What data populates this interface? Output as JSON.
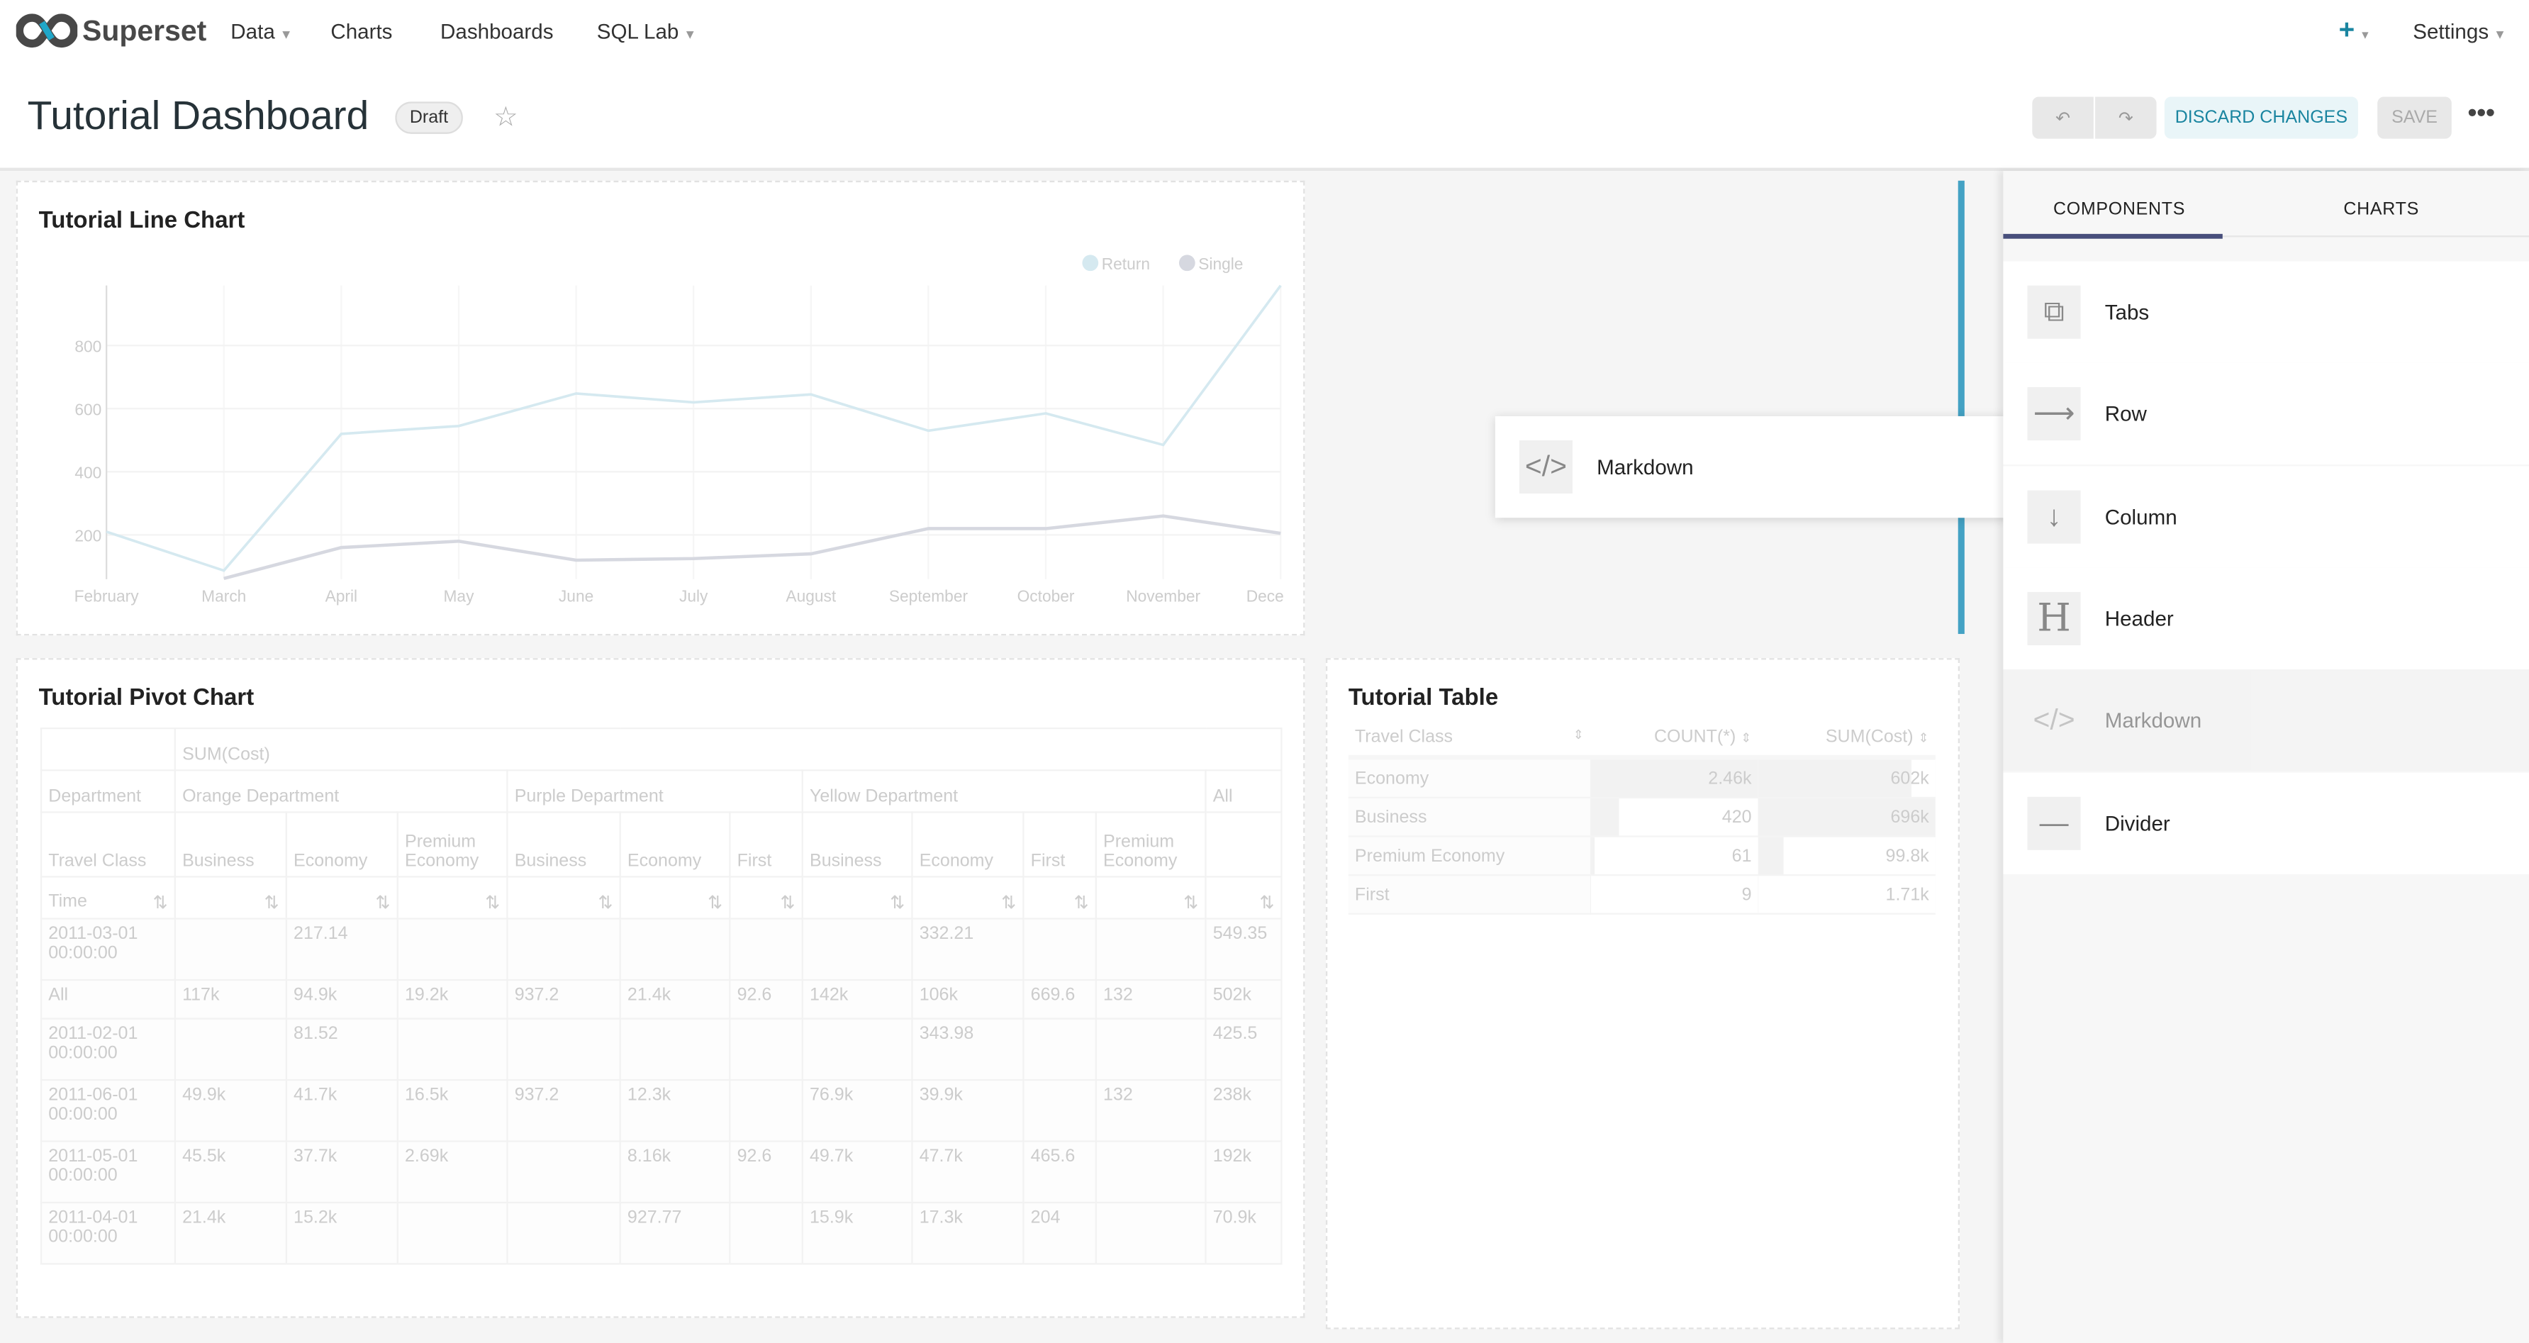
{
  "nav": {
    "brand": "Superset",
    "items": [
      {
        "label": "Data",
        "dropdown": true
      },
      {
        "label": "Charts"
      },
      {
        "label": "Dashboards"
      },
      {
        "label": "SQL Lab",
        "dropdown": true
      }
    ],
    "plus_icon": "plus-icon",
    "settings": "Settings"
  },
  "header": {
    "title": "Tutorial Dashboard",
    "status": "Draft",
    "undo_icon": "undo-icon",
    "redo_icon": "redo-icon",
    "discard": "DISCARD CHANGES",
    "save": "SAVE",
    "more_icon": "ellipsis-icon",
    "accent": "#1a85a0"
  },
  "line_chart": {
    "title": "Tutorial Line Chart",
    "chart_data": {
      "type": "line",
      "x": [
        "February",
        "March",
        "April",
        "May",
        "June",
        "July",
        "August",
        "September",
        "October",
        "November",
        "Dece"
      ],
      "yticks": [
        200,
        400,
        600,
        800
      ],
      "ylim": [
        60,
        990
      ],
      "legend_position": "top-right",
      "series": [
        {
          "name": "Return",
          "color": "#d5e9f0",
          "values": [
            210,
            87,
            520,
            545,
            648,
            620,
            645,
            530,
            585,
            485,
            990
          ]
        },
        {
          "name": "Single",
          "color": "#d6d8e0",
          "values": [
            null,
            62,
            160,
            180,
            120,
            125,
            140,
            220,
            220,
            260,
            205
          ]
        }
      ]
    }
  },
  "drag_preview": {
    "label": "Markdown",
    "icon": "code-icon"
  },
  "pivot": {
    "title": "Tutorial Pivot Chart",
    "metric": "SUM(Cost)",
    "dept_label": "Department",
    "departments": [
      {
        "name": "Orange Department",
        "span": 3
      },
      {
        "name": "Purple Department",
        "span": 3
      },
      {
        "name": "Yellow Department",
        "span": 4
      },
      {
        "name": "All",
        "span": 1
      }
    ],
    "class_label": "Travel Class",
    "classes": [
      "Business",
      "Economy",
      "Premium Economy",
      "Business",
      "Economy",
      "First",
      "Business",
      "Economy",
      "First",
      "Premium Economy",
      ""
    ],
    "time_label": "Time",
    "rows": [
      {
        "label": "2011-03-01 00:00:00",
        "cells": [
          "",
          "217.14",
          "",
          "",
          "",
          "",
          "",
          "332.21",
          "",
          "",
          "549.35"
        ]
      },
      {
        "label": "All",
        "cells": [
          "117k",
          "94.9k",
          "19.2k",
          "937.2",
          "21.4k",
          "92.6",
          "142k",
          "106k",
          "669.6",
          "132",
          "502k"
        ]
      },
      {
        "label": "2011-02-01 00:00:00",
        "cells": [
          "",
          "81.52",
          "",
          "",
          "",
          "",
          "",
          "343.98",
          "",
          "",
          "425.5"
        ]
      },
      {
        "label": "2011-06-01 00:00:00",
        "cells": [
          "49.9k",
          "41.7k",
          "16.5k",
          "937.2",
          "12.3k",
          "",
          "76.9k",
          "39.9k",
          "",
          "132",
          "238k"
        ]
      },
      {
        "label": "2011-05-01 00:00:00",
        "cells": [
          "45.5k",
          "37.7k",
          "2.69k",
          "",
          "8.16k",
          "92.6",
          "49.7k",
          "47.7k",
          "465.6",
          "",
          "192k"
        ]
      },
      {
        "label": "2011-04-01 00:00:00",
        "cells": [
          "21.4k",
          "15.2k",
          "",
          "",
          "927.77",
          "",
          "15.9k",
          "17.3k",
          "204",
          "",
          "70.9k"
        ]
      }
    ]
  },
  "table": {
    "title": "Tutorial Table",
    "columns": [
      "Travel Class",
      "COUNT(*)",
      "SUM(Cost)"
    ],
    "rows": [
      {
        "cls": "Economy",
        "count": "2.46k",
        "count_bar": 1.0,
        "sum": "602k",
        "sum_bar": 0.865
      },
      {
        "cls": "Business",
        "count": "420",
        "count_bar": 0.171,
        "sum": "696k",
        "sum_bar": 1.0
      },
      {
        "cls": "Premium Economy",
        "count": "61",
        "count_bar": 0.025,
        "sum": "99.8k",
        "sum_bar": 0.143
      },
      {
        "cls": "First",
        "count": "9",
        "count_bar": 0.004,
        "sum": "1.71k",
        "sum_bar": 0.002
      }
    ]
  },
  "panel": {
    "tabs": [
      "COMPONENTS",
      "CHARTS"
    ],
    "active_tab": 0,
    "components": [
      {
        "label": "Tabs",
        "icon": "tabs-icon"
      },
      {
        "label": "Row",
        "icon": "arrow-right-icon"
      },
      {
        "label": "Column",
        "icon": "arrow-down-icon"
      },
      {
        "label": "Header",
        "icon": "header-icon"
      },
      {
        "label": "Markdown",
        "icon": "code-icon",
        "dragging": true
      },
      {
        "label": "Divider",
        "icon": "divider-icon"
      }
    ]
  }
}
